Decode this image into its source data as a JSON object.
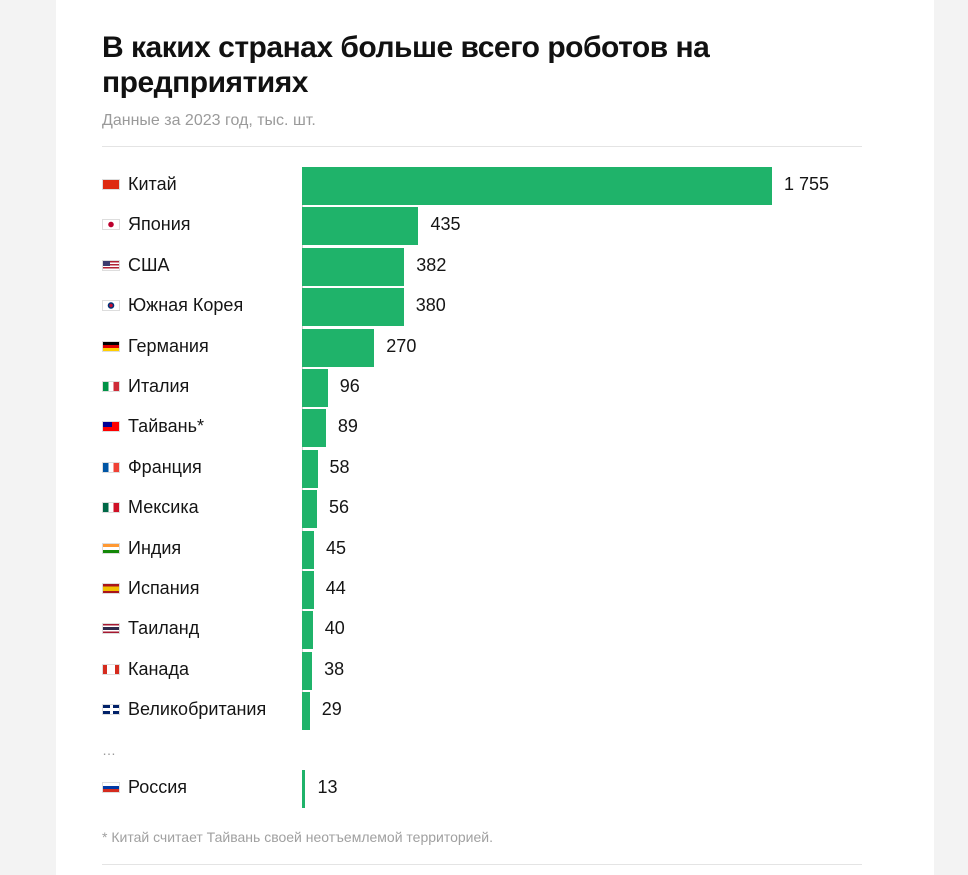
{
  "chart_data": {
    "type": "bar",
    "orientation": "horizontal",
    "title": "В каких странах больше всего роботов на предприятиях",
    "subtitle": "Данные за 2023 год, тыс. шт.",
    "categories": [
      "Китай",
      "Япония",
      "США",
      "Южная Корея",
      "Германия",
      "Италия",
      "Тайвань*",
      "Франция",
      "Мексика",
      "Индия",
      "Испания",
      "Таиланд",
      "Канада",
      "Великобритания",
      "Россия"
    ],
    "values": [
      1755,
      435,
      382,
      380,
      270,
      96,
      89,
      58,
      56,
      45,
      44,
      40,
      38,
      29,
      13
    ],
    "value_labels": [
      "1 755",
      "435",
      "382",
      "380",
      "270",
      "96",
      "89",
      "58",
      "56",
      "45",
      "44",
      "40",
      "38",
      "29",
      "13"
    ],
    "flags": [
      "china-flag-icon",
      "japan-flag-icon",
      "usa-flag-icon",
      "south-korea-flag-icon",
      "germany-flag-icon",
      "italy-flag-icon",
      "taiwan-flag-icon",
      "france-flag-icon",
      "mexico-flag-icon",
      "india-flag-icon",
      "spain-flag-icon",
      "thailand-flag-icon",
      "canada-flag-icon",
      "uk-flag-icon",
      "russia-flag-icon"
    ],
    "bar_color": "#1fb36a",
    "xlim": [
      0,
      1755
    ],
    "grid": false,
    "legend": "none",
    "gap_marker": "…",
    "footnote": "* Китай считает Тайвань своей неотъемлемой территорией."
  }
}
